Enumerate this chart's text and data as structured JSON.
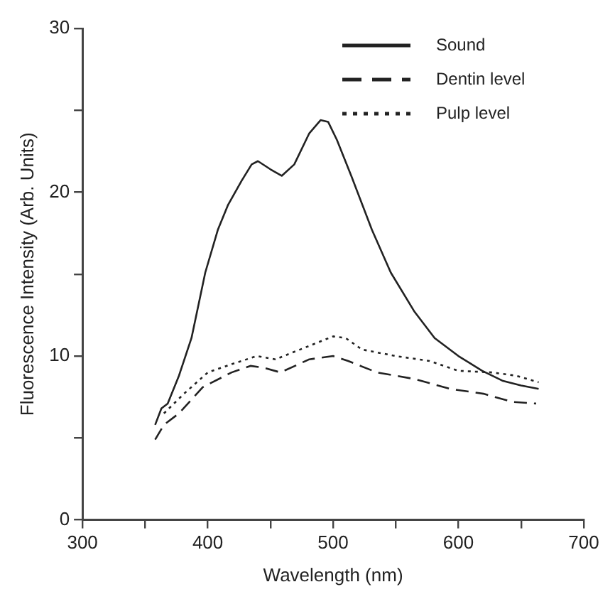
{
  "chart_data": {
    "type": "line",
    "xlabel": "Wavelength (nm)",
    "ylabel": "Fluorescence Intensity (Arb. Units)",
    "xlim": [
      300,
      700
    ],
    "xticks": [
      300,
      {
        "value": 350,
        "label": null
      },
      400,
      {
        "value": 450,
        "label": null
      },
      500,
      {
        "value": 550,
        "label": null
      },
      600,
      {
        "value": 650,
        "label": null
      },
      700
    ],
    "ylim": [
      0,
      30
    ],
    "yticks": [
      0,
      {
        "value": 5,
        "label": null
      },
      10,
      {
        "value": 15,
        "label": null
      },
      20,
      {
        "value": 25,
        "label": null
      },
      30
    ],
    "grid": false,
    "legend": "top right",
    "marker": "none",
    "series": [
      {
        "name": "Sound",
        "color": "#222222",
        "line_style": "solid",
        "x": [
          358,
          363,
          368,
          377,
          387,
          398,
          408,
          416,
          427,
          435,
          440,
          450,
          459,
          469,
          481,
          490,
          496,
          503,
          515,
          531,
          546,
          565,
          581,
          600,
          619,
          635,
          650,
          664
        ],
        "values": [
          5.8,
          6.8,
          7.1,
          8.8,
          11.1,
          15.1,
          17.7,
          19.2,
          20.7,
          21.7,
          21.9,
          21.4,
          21.0,
          21.7,
          23.6,
          24.4,
          24.3,
          23.2,
          20.9,
          17.7,
          15.1,
          12.7,
          11.1,
          10.0,
          9.1,
          8.5,
          8.2,
          8.0
        ]
      },
      {
        "name": "Dentin level",
        "color": "#222222",
        "line_style": "dashed",
        "x": [
          358,
          365,
          377,
          396,
          419,
          434,
          444,
          458,
          481,
          500,
          512,
          535,
          565,
          593,
          620,
          643,
          662
        ],
        "values": [
          4.9,
          5.8,
          6.5,
          8.1,
          9.0,
          9.4,
          9.3,
          9.0,
          9.8,
          10.0,
          9.7,
          9.0,
          8.6,
          8.0,
          7.7,
          7.2,
          7.1
        ]
      },
      {
        "name": "Pulp level",
        "color": "#222222",
        "line_style": "dotted",
        "x": [
          365,
          381,
          400,
          419,
          439,
          454,
          477,
          500,
          510,
          523,
          550,
          577,
          600,
          627,
          646,
          664
        ],
        "values": [
          6.5,
          7.7,
          9.0,
          9.5,
          10.0,
          9.8,
          10.5,
          11.2,
          11.1,
          10.4,
          10.0,
          9.7,
          9.1,
          9.0,
          8.8,
          8.4
        ]
      }
    ]
  }
}
